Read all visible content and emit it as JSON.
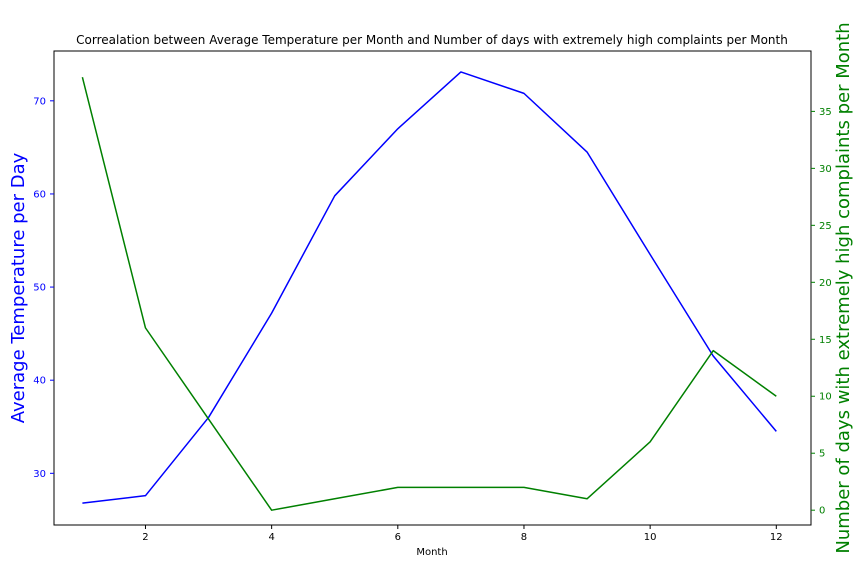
{
  "chart_data": {
    "type": "line",
    "title": "Correalation between Average Temperature per Month and Number of days with extremely high complaints per Month",
    "xlabel": "Month",
    "ylabel_left": "Average Temperature per Day",
    "ylabel_right": "Number of days with extremely high complaints per Month",
    "x": [
      1,
      2,
      3,
      4,
      5,
      6,
      7,
      8,
      9,
      10,
      11,
      12
    ],
    "x_ticks": [
      2,
      4,
      6,
      8,
      10,
      12
    ],
    "xlim": [
      0.55,
      12.55
    ],
    "y_left_ticks": [
      30,
      40,
      50,
      60,
      70
    ],
    "y_left_lim": [
      24.45,
      75.35
    ],
    "y_right_ticks": [
      0,
      5,
      10,
      15,
      20,
      25,
      30,
      35
    ],
    "y_right_lim": [
      -1.3,
      40.3
    ],
    "grid": false,
    "colors": {
      "left": "#0000ff",
      "right": "#008000",
      "axis": "#000000"
    },
    "series": [
      {
        "axis": "left",
        "color": "#0000ff",
        "values": [
          26.8,
          27.6,
          36.0,
          47.2,
          59.8,
          67.0,
          73.1,
          70.8,
          64.5,
          53.5,
          42.6,
          34.5
        ]
      },
      {
        "axis": "right",
        "color": "#008000",
        "values": [
          38,
          16,
          8,
          0,
          1,
          2,
          2,
          2,
          1,
          6,
          14,
          10
        ]
      }
    ]
  }
}
